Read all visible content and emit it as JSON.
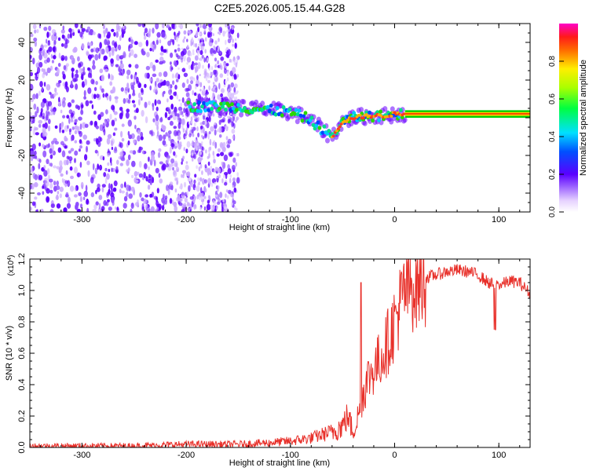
{
  "title": "C2E5.2026.005.15.44.G28",
  "colors": {
    "snr_line": "#e8302a",
    "spectrogram_scatter": "#6a00ff",
    "trace_core": "#ff3b1f",
    "trace_fringe": "#00c8ff"
  },
  "chart_data": [
    {
      "type": "heatmap",
      "title": "C2E5.2026.005.15.44.G28",
      "xlabel": "Height of straight line (km)",
      "ylabel": "Frequency (Hz)",
      "xlim": [
        -350,
        130
      ],
      "ylim": [
        -50,
        50
      ],
      "x_ticks": [
        -300,
        -200,
        -100,
        0,
        100
      ],
      "y_ticks": [
        -40,
        -20,
        0,
        20,
        40
      ],
      "colorbar": {
        "label": "Normalized spectral amplitude",
        "range": [
          0,
          1
        ],
        "ticks": [
          "0.0",
          "0.2",
          "0.4",
          "0.6",
          "0.8"
        ]
      },
      "trace": {
        "x": [
          -200,
          -180,
          -160,
          -140,
          -120,
          -100,
          -85,
          -70,
          -60,
          -50,
          -40,
          -25,
          -10,
          0,
          10,
          40,
          90,
          130
        ],
        "y": [
          6,
          6,
          6,
          5,
          4,
          3,
          0,
          -6,
          -10,
          -2,
          0,
          1,
          1,
          2,
          2,
          2,
          2,
          2
        ]
      }
    },
    {
      "type": "line",
      "xlabel": "Height of straight line (km)",
      "ylabel": "SNR (10 * v/v)",
      "y_multiplier": "(x10",
      "y_multiplier_exp": "4",
      "xlim": [
        -350,
        130
      ],
      "ylim": [
        0,
        1.2
      ],
      "x_ticks": [
        -300,
        -200,
        -100,
        0,
        100
      ],
      "y_ticks": [
        "0.0",
        "0.2",
        "0.4",
        "0.6",
        "0.8",
        "1.0",
        "1.2"
      ],
      "series": [
        {
          "x": [
            -350,
            -300,
            -250,
            -200,
            -150,
            -120,
            -100,
            -80,
            -60,
            -50,
            -45,
            -40,
            -35,
            -30,
            -25,
            -20,
            -15,
            -10,
            -5,
            0,
            5,
            10,
            20,
            30,
            40,
            50,
            60,
            70,
            80,
            90,
            100,
            110,
            120,
            130
          ],
          "values": [
            0.01,
            0.01,
            0.01,
            0.02,
            0.02,
            0.03,
            0.04,
            0.06,
            0.1,
            0.14,
            0.2,
            0.1,
            0.2,
            0.35,
            0.45,
            0.5,
            0.55,
            0.62,
            0.7,
            0.8,
            0.9,
            1.0,
            1.05,
            1.08,
            1.1,
            1.12,
            1.13,
            1.12,
            1.1,
            1.05,
            1.03,
            1.06,
            1.05,
            0.98
          ]
        }
      ]
    }
  ]
}
